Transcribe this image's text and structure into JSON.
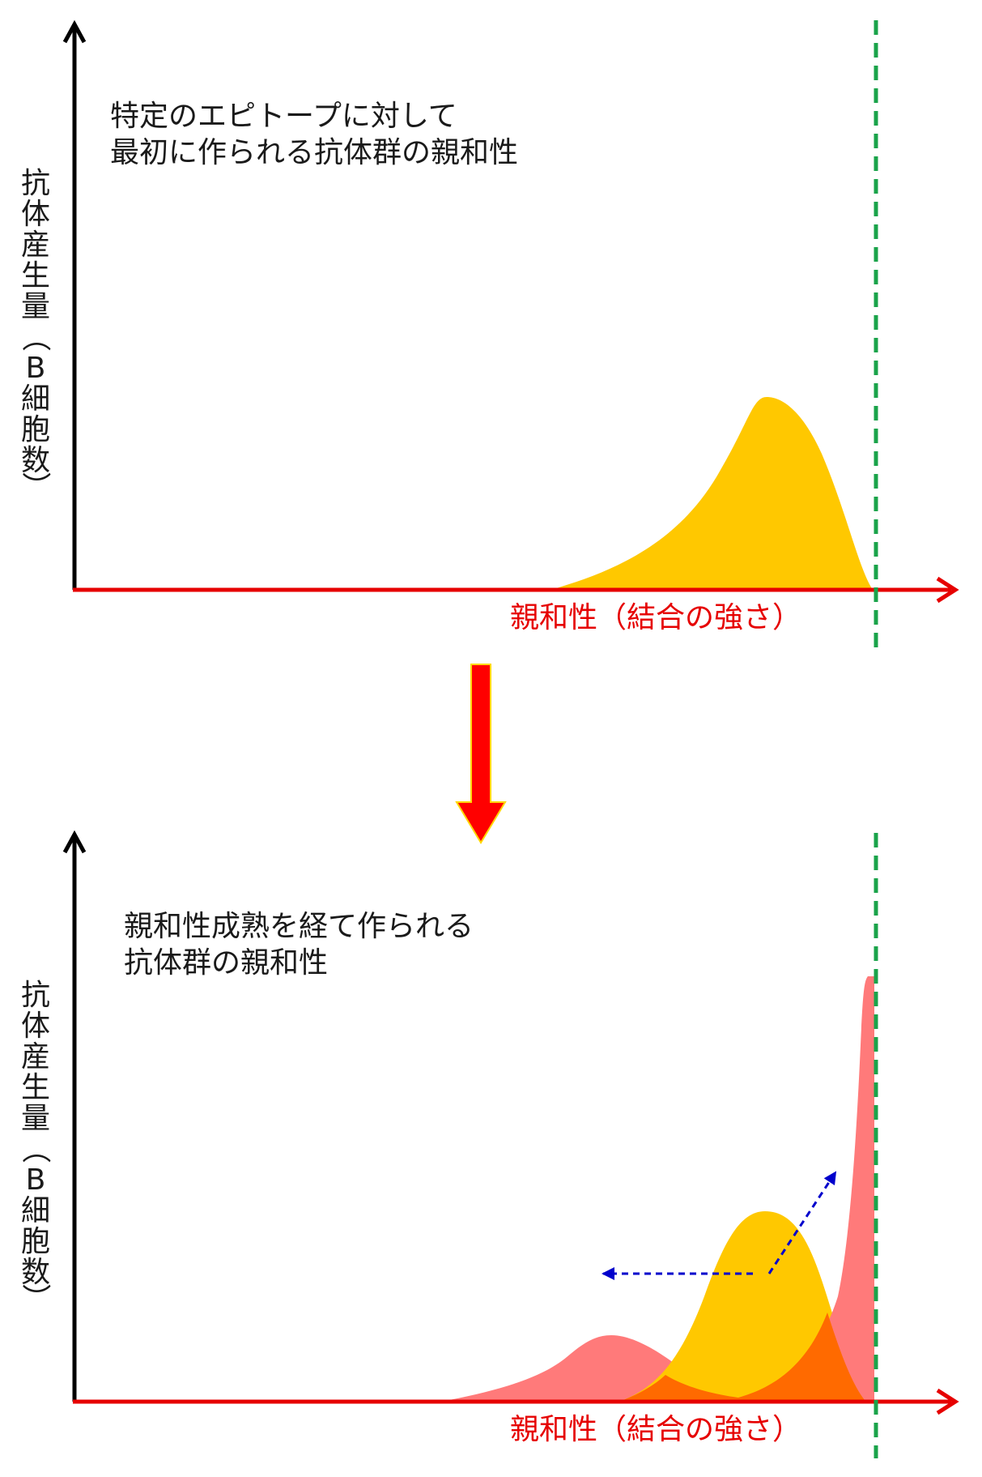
{
  "colors": {
    "axis_y": "#000000",
    "axis_x": "#e60000",
    "threshold_line": "#1aa34a",
    "initial_distribution": "#ffc800",
    "matured_distribution": "#ff7a7a",
    "overlap": "#ff6a00",
    "transition_arrow": "#ff0000",
    "transition_arrow_outline": "#ffd700",
    "shift_arrows": "#0000cc"
  },
  "top_panel": {
    "caption_line1": "特定のエピトープに対して",
    "caption_line2": "最初に作られる抗体群の親和性",
    "y_axis_label_chars": [
      "抗",
      "体",
      "産",
      "生",
      "量",
      "（",
      "B",
      "細",
      "胞",
      "数",
      "）"
    ],
    "x_axis_label": "親和性（結合の強さ）"
  },
  "bottom_panel": {
    "caption_line1": "親和性成熟を経て作られる",
    "caption_line2": "抗体群の親和性",
    "y_axis_label_chars": [
      "抗",
      "体",
      "産",
      "生",
      "量",
      "（",
      "B",
      "細",
      "胞",
      "数",
      "）"
    ],
    "x_axis_label": "親和性（結合の強さ）"
  },
  "transition_arrow_icon": "down-arrow-icon",
  "shift_arrow_icons": [
    "left-dashed-arrow-icon",
    "up-right-dashed-arrow-icon"
  ]
}
